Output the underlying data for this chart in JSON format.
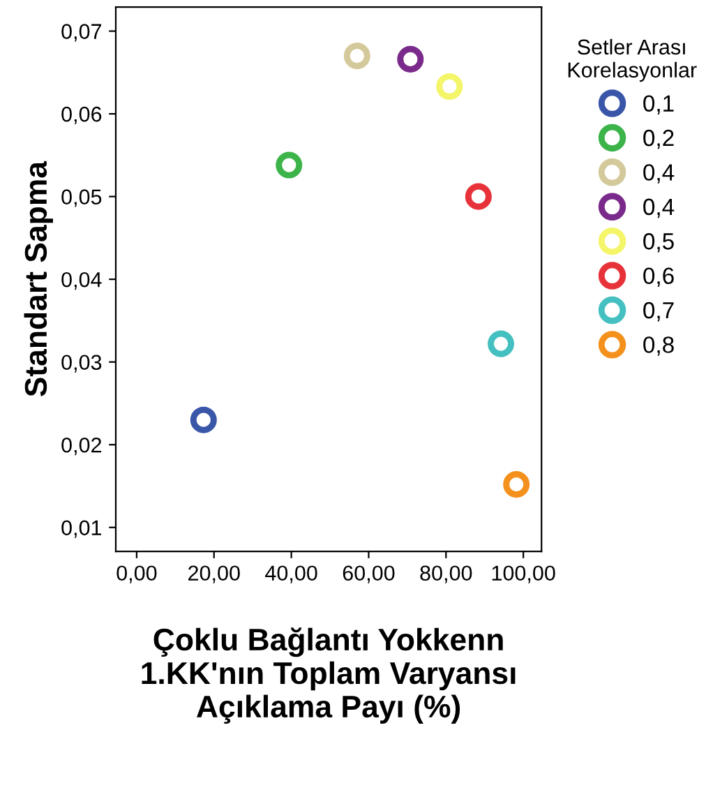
{
  "chart_data": {
    "type": "scatter",
    "xlabel": "Çoklu Bağlantı Yokkenn\n1.KK'nın Toplam Varyansı\nAçıklama Payı (%)",
    "ylabel": "Standart Sapma",
    "legend_title": "Setler Arası\nKorelasyonlar",
    "legend": "right",
    "marker": "circle",
    "grid": false,
    "xlim": [
      -5.4,
      104.7
    ],
    "ylim": [
      0.0071,
      0.0729
    ],
    "xticks": [
      {
        "value": 0,
        "label": "0,00"
      },
      {
        "value": 20,
        "label": "20,00"
      },
      {
        "value": 40,
        "label": "40,00"
      },
      {
        "value": 60,
        "label": "60,00"
      },
      {
        "value": 80,
        "label": "80,00"
      },
      {
        "value": 100,
        "label": "100,00"
      }
    ],
    "yticks": [
      {
        "value": 0.01,
        "label": "0,01"
      },
      {
        "value": 0.02,
        "label": "0,02"
      },
      {
        "value": 0.03,
        "label": "0,03"
      },
      {
        "value": 0.04,
        "label": "0,04"
      },
      {
        "value": 0.05,
        "label": "0,05"
      },
      {
        "value": 0.06,
        "label": "0,06"
      },
      {
        "value": 0.07,
        "label": "0,07"
      }
    ],
    "series": [
      {
        "name": "0,1",
        "color": "#3a56a8",
        "x": [
          17.3
        ],
        "values": [
          0.023
        ]
      },
      {
        "name": "0,2",
        "color": "#3cb44a",
        "x": [
          39.4
        ],
        "values": [
          0.0538
        ]
      },
      {
        "name": "0,4",
        "color": "#d4c99a",
        "x": [
          57.0
        ],
        "values": [
          0.067
        ]
      },
      {
        "name": "0,4",
        "color": "#7a2a8a",
        "x": [
          70.8
        ],
        "values": [
          0.0666
        ]
      },
      {
        "name": "0,5",
        "color": "#f5f56a",
        "x": [
          80.9
        ],
        "values": [
          0.0633
        ]
      },
      {
        "name": "0,6",
        "color": "#e8323a",
        "x": [
          88.4
        ],
        "values": [
          0.05
        ]
      },
      {
        "name": "0,7",
        "color": "#45c0c0",
        "x": [
          94.2
        ],
        "values": [
          0.0322
        ]
      },
      {
        "name": "0,8",
        "color": "#f4901c",
        "x": [
          98.2
        ],
        "values": [
          0.0152
        ]
      }
    ]
  }
}
